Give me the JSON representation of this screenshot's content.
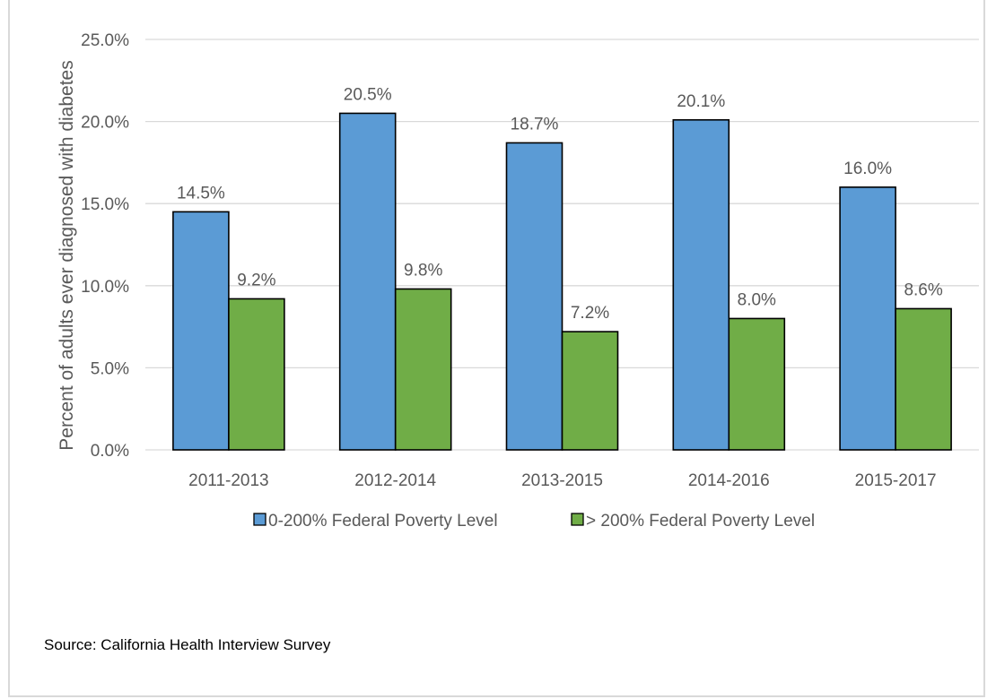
{
  "chart_data": {
    "type": "bar",
    "categories": [
      "2011-2013",
      "2012-2014",
      "2013-2015",
      "2014-2016",
      "2015-2017"
    ],
    "series": [
      {
        "name": "0-200% Federal Poverty Level",
        "values": [
          14.5,
          20.5,
          18.7,
          20.1,
          16.0
        ],
        "labels": [
          "14.5%",
          "20.5%",
          "18.7%",
          "20.1%",
          "16.0%"
        ],
        "color": "#5b9bd5"
      },
      {
        "name": "> 200% Federal Poverty Level",
        "values": [
          9.2,
          9.8,
          7.2,
          8.0,
          8.6
        ],
        "labels": [
          "9.2%",
          "9.8%",
          "7.2%",
          "8.0%",
          "8.6%"
        ],
        "color": "#70ad47"
      }
    ],
    "ylabel": "Percent of adults ever diagnosed with diabetes",
    "ylim": [
      0,
      25
    ],
    "yticks": [
      0,
      5,
      10,
      15,
      20,
      25
    ],
    "ytick_labels": [
      "0.0%",
      "5.0%",
      "10.0%",
      "15.0%",
      "20.0%",
      "25.0%"
    ],
    "grid": true,
    "legend_position": "bottom",
    "gridline_color": "#d9d9d9",
    "bar_outline_color": "#000000"
  },
  "source_note": "Source: California Health Interview Survey"
}
